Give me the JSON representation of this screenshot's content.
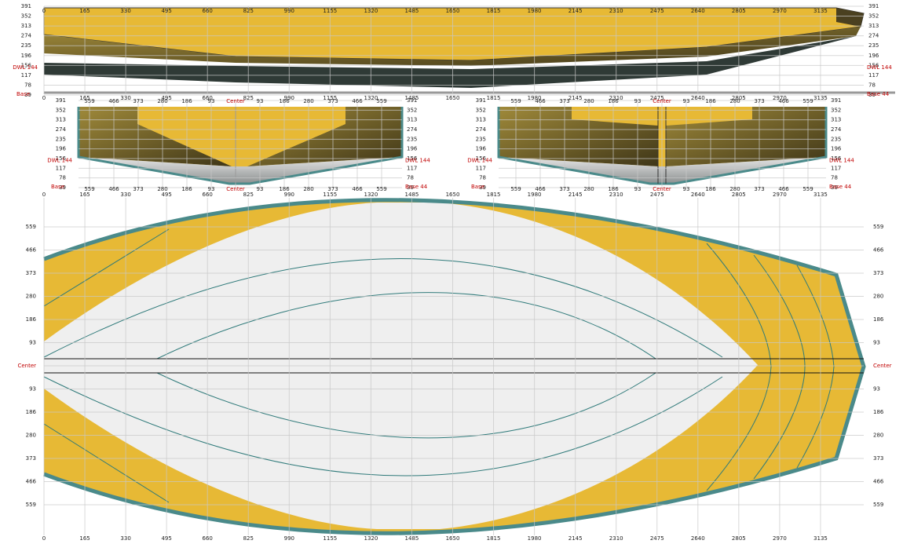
{
  "stations": [
    "0",
    "165",
    "330",
    "495",
    "660",
    "825",
    "990",
    "1155",
    "1320",
    "1485",
    "1650",
    "1815",
    "1980",
    "2145",
    "2310",
    "2475",
    "2640",
    "2805",
    "2970",
    "3135"
  ],
  "heights": [
    "391",
    "352",
    "313",
    "274",
    "235",
    "196",
    "156",
    "117",
    "78",
    "39"
  ],
  "offsets": [
    "559",
    "466",
    "373",
    "280",
    "186",
    "93",
    "Center",
    "93",
    "186",
    "280",
    "373",
    "466",
    "559"
  ],
  "labels": {
    "dwl": "DWL 144",
    "base": "Base 44",
    "base_word": "Base"
  }
}
